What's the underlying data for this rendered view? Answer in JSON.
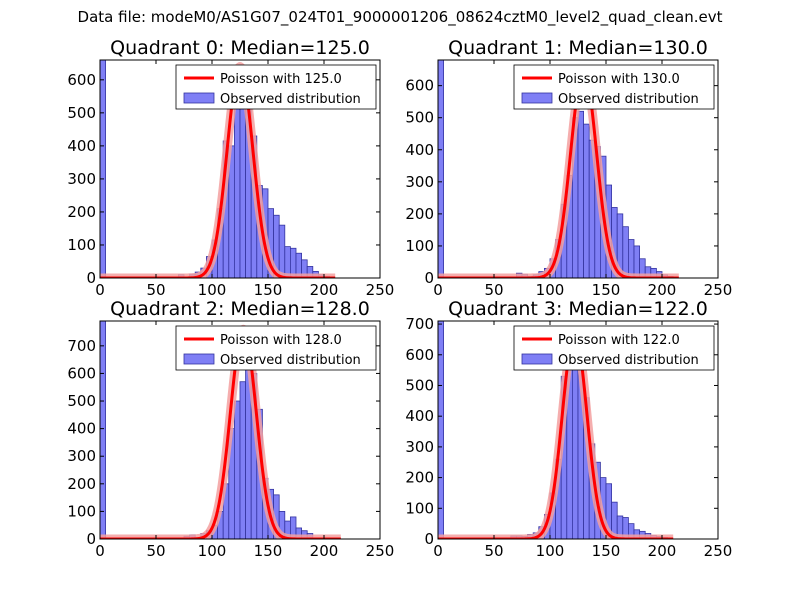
{
  "figure": {
    "suptitle": "Data file: modeM0/AS1G07_024T01_9000001206_08624cztM0_level2_quad_clean.evt"
  },
  "colors": {
    "observed_fill": "#7f7ff5",
    "observed_edge": "#3434a0",
    "poisson_line": "#ff0000",
    "poisson_band": "#f3a0a0"
  },
  "chart_data": [
    {
      "type": "bar",
      "title": "Quadrant 0: Median=125.0",
      "median": 125.0,
      "xlim": [
        0,
        250
      ],
      "ylim": [
        0,
        660
      ],
      "xticks": [
        0,
        50,
        100,
        150,
        200,
        250
      ],
      "yticks": [
        0,
        100,
        200,
        300,
        400,
        500,
        600
      ],
      "legend": {
        "position": "top-right",
        "entries": [
          "Poisson with 125.0",
          "Observed distribution"
        ]
      },
      "bin_width": 5,
      "histogram": {
        "bin_starts": [
          0,
          70,
          75,
          80,
          85,
          90,
          95,
          100,
          105,
          110,
          115,
          120,
          125,
          130,
          135,
          140,
          145,
          150,
          155,
          160,
          165,
          170,
          175,
          180,
          185,
          190,
          195,
          200
        ],
        "counts": [
          660,
          10,
          3,
          12,
          18,
          30,
          65,
          115,
          210,
          415,
          400,
          560,
          600,
          540,
          430,
          280,
          270,
          210,
          190,
          160,
          95,
          90,
          75,
          55,
          35,
          20,
          10,
          5
        ]
      },
      "poisson": {
        "label": "Poisson with 125.0",
        "mean": 125.0,
        "peak": 640,
        "sigma": 11.5,
        "x_range": [
          0,
          210
        ]
      }
    },
    {
      "type": "bar",
      "title": "Quadrant 1: Median=130.0",
      "median": 130.0,
      "xlim": [
        0,
        250
      ],
      "ylim": [
        0,
        680
      ],
      "xticks": [
        0,
        50,
        100,
        150,
        200,
        250
      ],
      "yticks": [
        0,
        100,
        200,
        300,
        400,
        500,
        600
      ],
      "legend": {
        "position": "top-right",
        "entries": [
          "Poisson with 130.0",
          "Observed distribution"
        ]
      },
      "bin_width": 5,
      "histogram": {
        "bin_starts": [
          0,
          70,
          75,
          80,
          85,
          90,
          95,
          100,
          105,
          110,
          115,
          120,
          125,
          130,
          135,
          140,
          145,
          150,
          155,
          160,
          165,
          170,
          175,
          180,
          185,
          190,
          195,
          200,
          205
        ],
        "counts": [
          680,
          15,
          12,
          5,
          10,
          20,
          30,
          60,
          120,
          230,
          320,
          500,
          520,
          480,
          430,
          410,
          380,
          290,
          220,
          200,
          160,
          120,
          100,
          60,
          35,
          30,
          20,
          10,
          5
        ]
      },
      "poisson": {
        "label": "Poisson with 130.0",
        "mean": 130.0,
        "peak": 650,
        "sigma": 11.5,
        "x_range": [
          0,
          215
        ]
      }
    },
    {
      "type": "bar",
      "title": "Quadrant 2: Median=128.0",
      "median": 128.0,
      "xlim": [
        0,
        250
      ],
      "ylim": [
        0,
        790
      ],
      "xticks": [
        0,
        50,
        100,
        150,
        200,
        250
      ],
      "yticks": [
        0,
        100,
        200,
        300,
        400,
        500,
        600,
        700
      ],
      "legend": {
        "position": "top-right",
        "entries": [
          "Poisson with 128.0",
          "Observed distribution"
        ]
      },
      "bin_width": 5,
      "histogram": {
        "bin_starts": [
          0,
          75,
          80,
          85,
          90,
          95,
          100,
          105,
          110,
          115,
          120,
          125,
          130,
          135,
          140,
          145,
          150,
          155,
          160,
          165,
          170,
          175,
          180,
          185
        ],
        "counts": [
          790,
          10,
          15,
          5,
          20,
          30,
          50,
          100,
          200,
          400,
          500,
          570,
          720,
          600,
          470,
          220,
          180,
          160,
          100,
          65,
          80,
          40,
          30,
          20
        ]
      },
      "poisson": {
        "label": "Poisson with 128.0",
        "mean": 128.0,
        "peak": 760,
        "sigma": 11.5,
        "x_range": [
          0,
          215
        ]
      }
    },
    {
      "type": "bar",
      "title": "Quadrant 3: Median=122.0",
      "median": 122.0,
      "xlim": [
        0,
        250
      ],
      "ylim": [
        0,
        710
      ],
      "xticks": [
        0,
        50,
        100,
        150,
        200,
        250
      ],
      "yticks": [
        0,
        100,
        200,
        300,
        400,
        500,
        600,
        700
      ],
      "legend": {
        "position": "top-right",
        "entries": [
          "Poisson with 122.0",
          "Observed distribution"
        ]
      },
      "bin_width": 5,
      "histogram": {
        "bin_starts": [
          0,
          65,
          70,
          75,
          80,
          85,
          90,
          95,
          100,
          105,
          110,
          115,
          120,
          125,
          130,
          135,
          140,
          145,
          150,
          155,
          160,
          165,
          170,
          175,
          180,
          185,
          190,
          195,
          200
        ],
        "counts": [
          710,
          10,
          10,
          8,
          15,
          20,
          40,
          80,
          150,
          260,
          530,
          560,
          620,
          570,
          460,
          310,
          250,
          200,
          180,
          120,
          75,
          70,
          50,
          30,
          25,
          18,
          12,
          8,
          5
        ]
      },
      "poisson": {
        "label": "Poisson with 122.0",
        "mean": 122.0,
        "peak": 670,
        "sigma": 11.0,
        "x_range": [
          0,
          210
        ]
      }
    }
  ]
}
